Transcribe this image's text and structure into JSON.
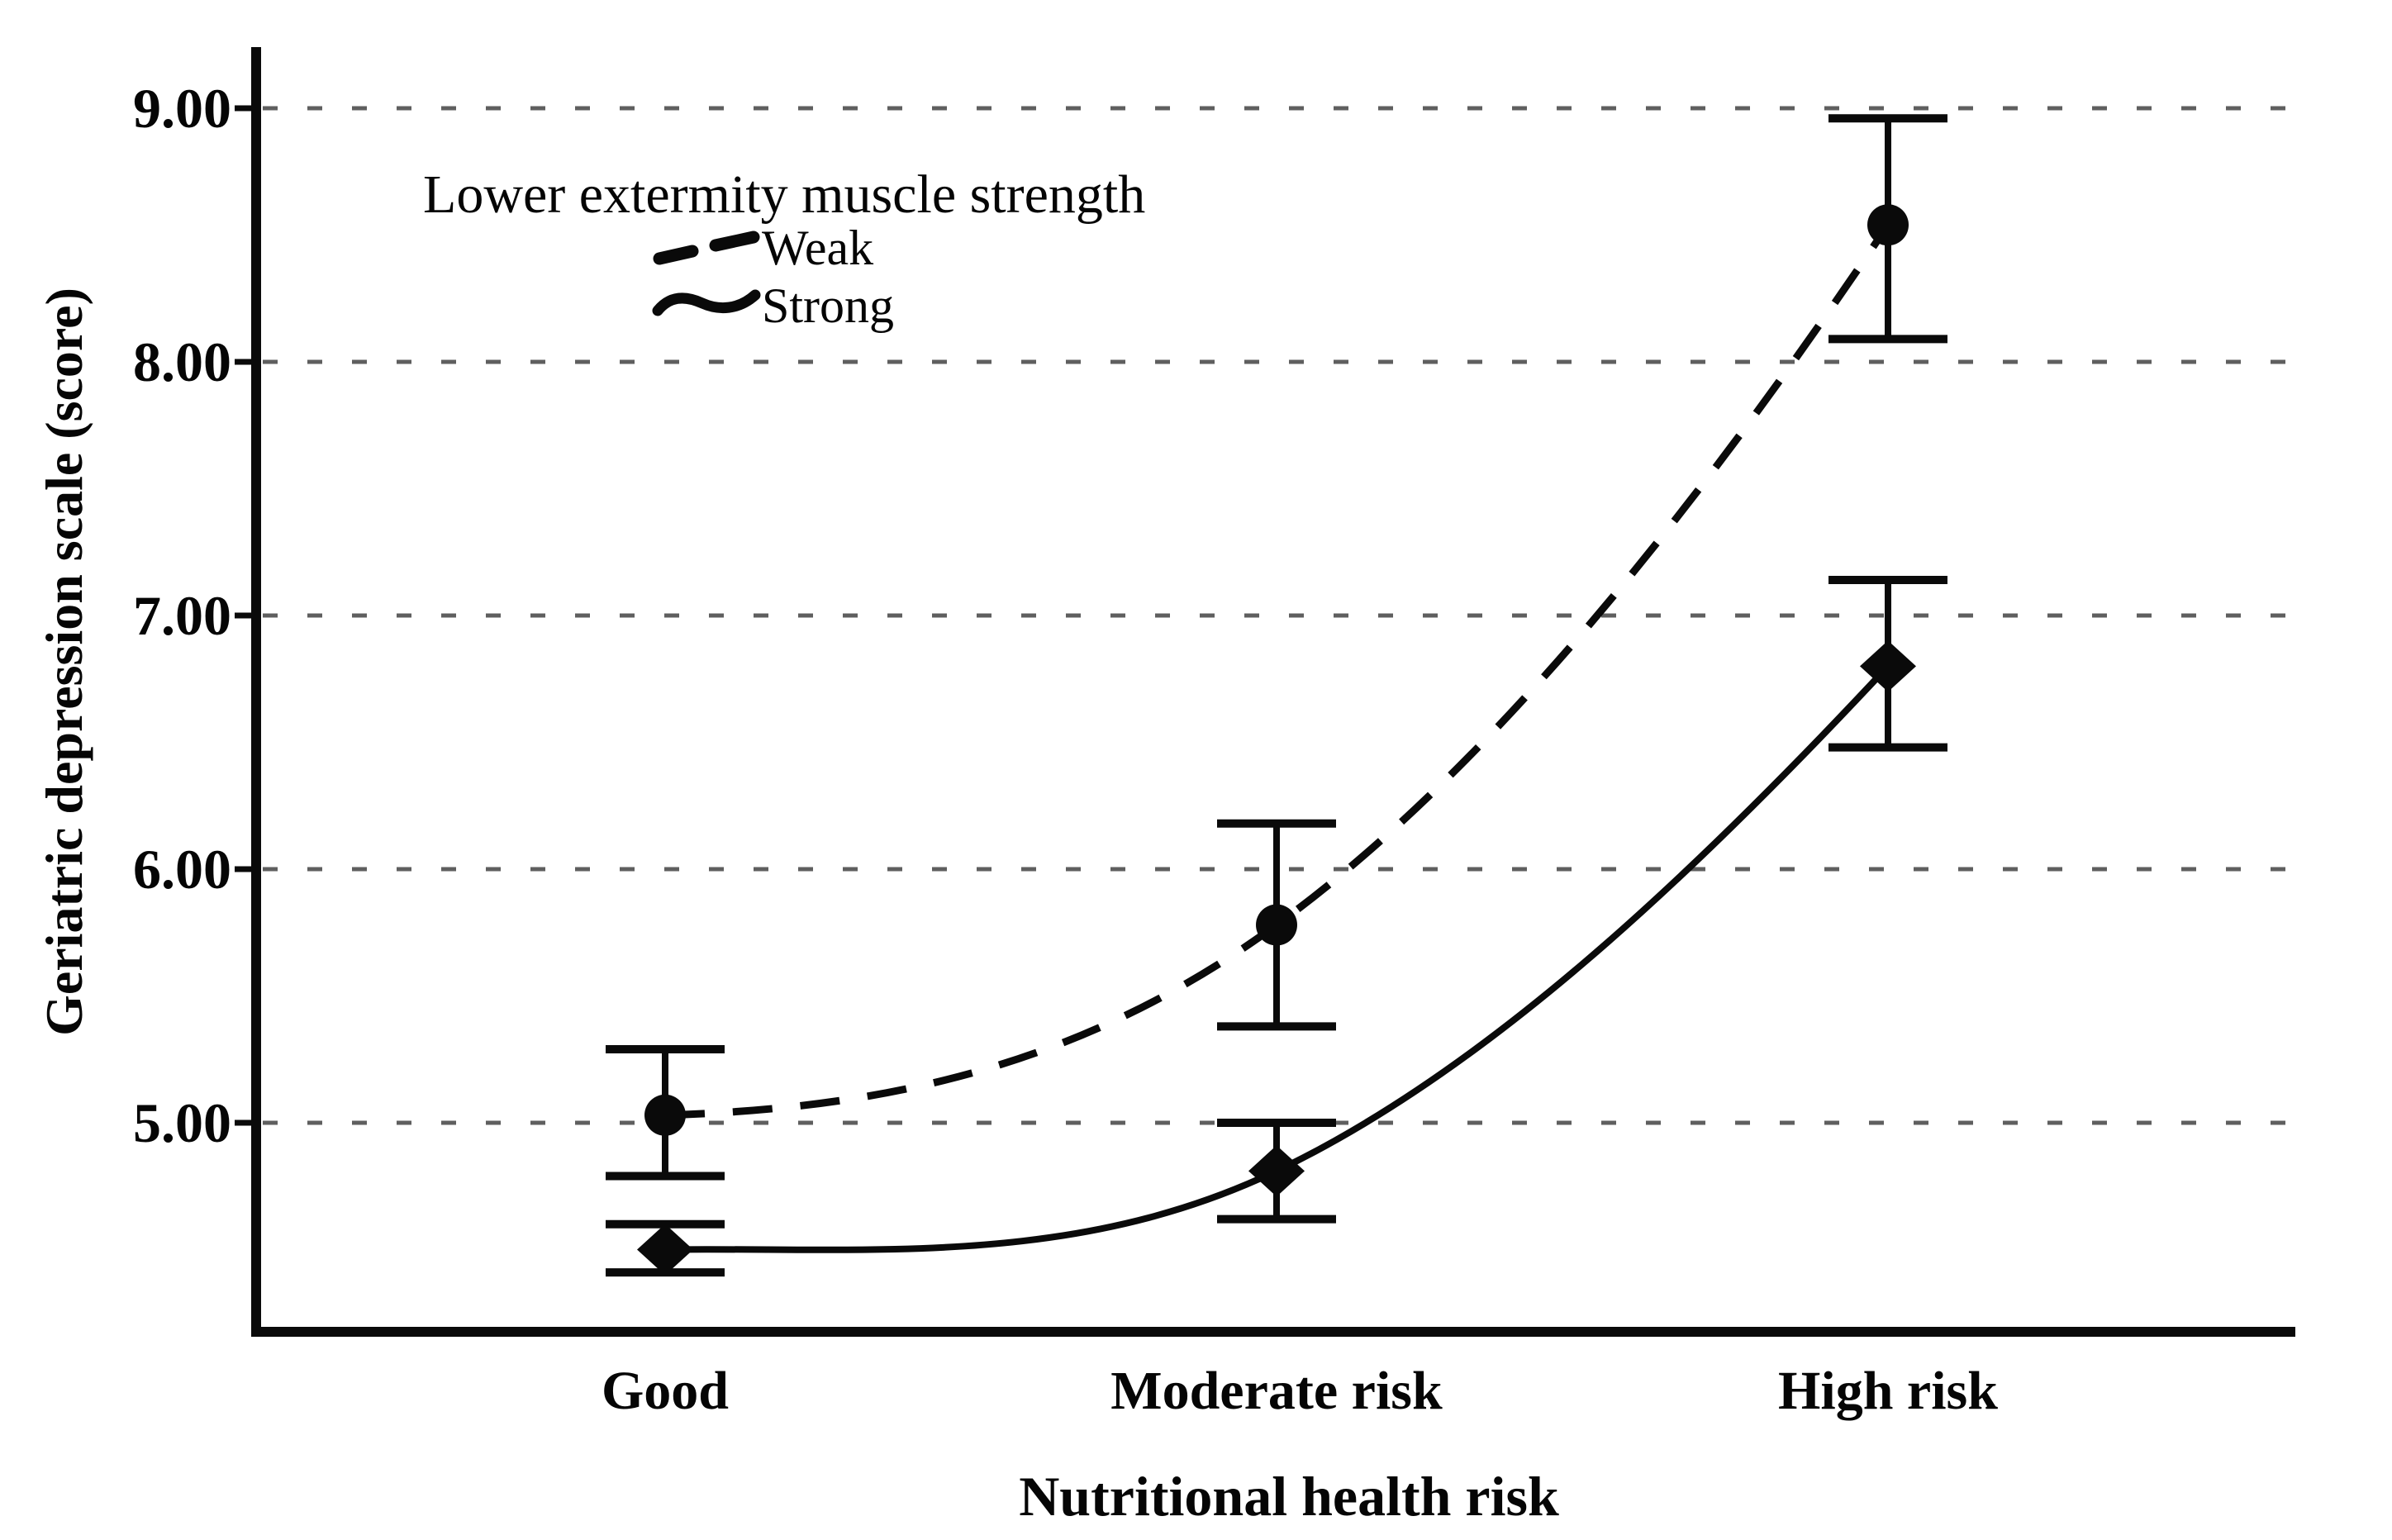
{
  "figure": {
    "background": "#ffffff",
    "ink_color": "#0a0a0a",
    "gridline_color": "#5f5f5f"
  },
  "chart_data": {
    "type": "line",
    "title": "",
    "xlabel": "Nutritional health risk",
    "ylabel": "Geriatric depression scale (score)",
    "categories": [
      "Good",
      "Moderate risk",
      "High risk"
    ],
    "ytick_labels": [
      "9.00",
      "8.00",
      "7.00",
      "6.00",
      "5.00"
    ],
    "ytick_values": [
      9,
      8,
      7,
      6,
      5
    ],
    "ylim": [
      4.2,
      9.25
    ],
    "grid": "horizontal-dotted",
    "error_bars": true,
    "legend": {
      "title": "Lower extermity muscle strength",
      "position": "top-left-inside"
    },
    "series": [
      {
        "name": "Weak",
        "line_style": "dashed",
        "marker": "circle",
        "color": "#0a0a0a",
        "values": [
          5.03,
          5.78,
          8.54
        ],
        "ci_low": [
          4.79,
          5.38,
          8.09
        ],
        "ci_high": [
          5.29,
          6.18,
          8.96
        ]
      },
      {
        "name": "Strong",
        "line_style": "solid",
        "marker": "diamond",
        "color": "#0a0a0a",
        "values": [
          4.5,
          4.81,
          6.8
        ],
        "ci_low": [
          4.41,
          4.62,
          6.48
        ],
        "ci_high": [
          4.6,
          5.0,
          7.14
        ]
      }
    ]
  }
}
